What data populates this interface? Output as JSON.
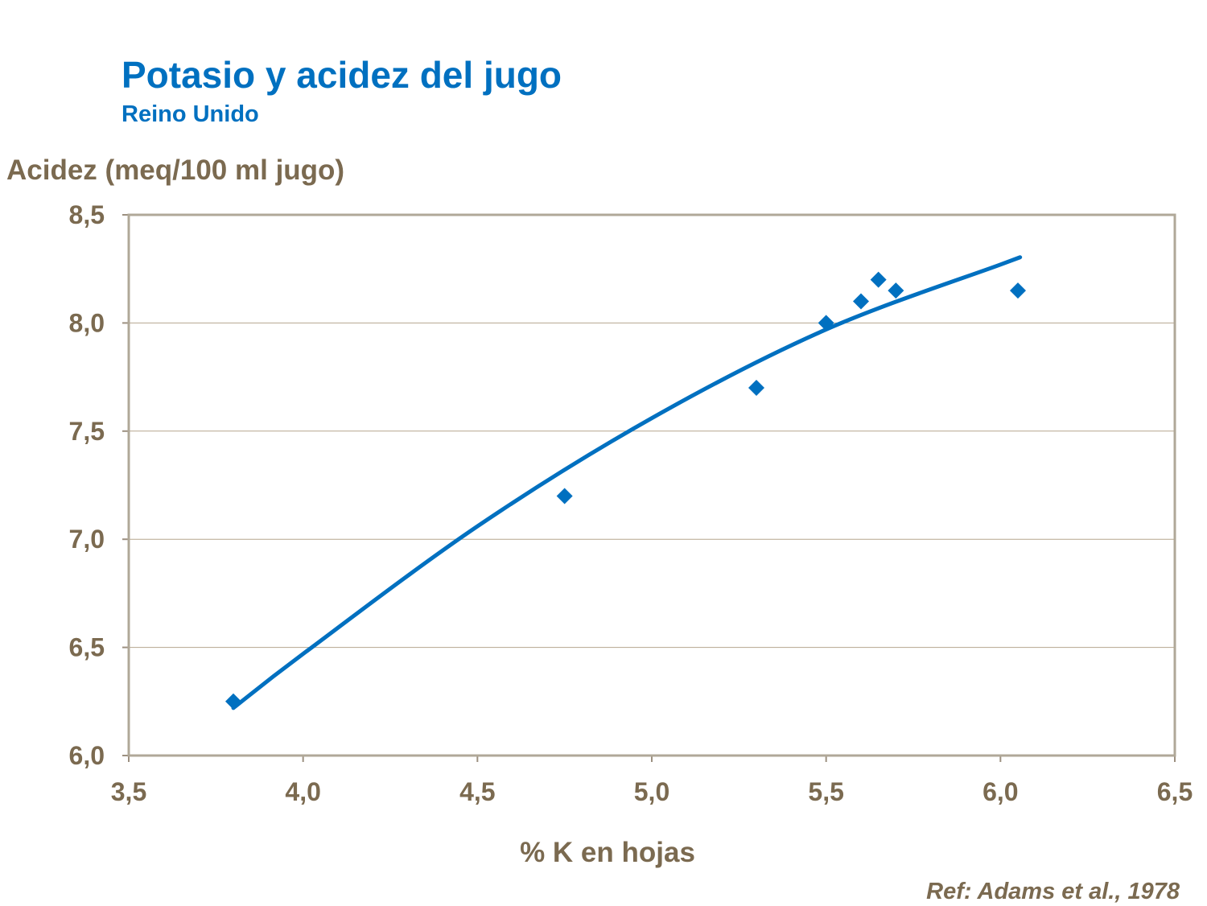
{
  "chart_data": {
    "type": "scatter",
    "title": "Potasio y acidez del jugo",
    "subtitle": "Reino Unido",
    "xlabel": "% K en hojas",
    "ylabel": "Acidez (meq/100 ml jugo)",
    "xlim": [
      3.5,
      6.5
    ],
    "ylim": [
      6.0,
      8.5
    ],
    "x_ticks": [
      "3,5",
      "4,0",
      "4,5",
      "5,0",
      "5,5",
      "6,0",
      "6,5"
    ],
    "y_ticks": [
      "6,0",
      "6,5",
      "7,0",
      "7,5",
      "8,0",
      "8,5"
    ],
    "grid": "horizontal",
    "legend": "none",
    "series": [
      {
        "marker": "diamond",
        "color": "#0070C0",
        "points": [
          {
            "x": 3.8,
            "y": 6.25
          },
          {
            "x": 4.75,
            "y": 7.2
          },
          {
            "x": 5.3,
            "y": 7.7
          },
          {
            "x": 5.5,
            "y": 8.0
          },
          {
            "x": 5.6,
            "y": 8.1
          },
          {
            "x": 5.65,
            "y": 8.2
          },
          {
            "x": 5.7,
            "y": 8.15
          },
          {
            "x": 6.05,
            "y": 8.15
          }
        ]
      }
    ],
    "trendline": {
      "type": "polynomial",
      "order": 2,
      "color": "#0070C0",
      "x_range": [
        3.8,
        6.05
      ],
      "samples": [
        {
          "x": 3.8,
          "y": 6.22
        },
        {
          "x": 4.0,
          "y": 6.47
        },
        {
          "x": 4.5,
          "y": 7.06
        },
        {
          "x": 5.0,
          "y": 7.56
        },
        {
          "x": 5.5,
          "y": 7.97
        },
        {
          "x": 6.0,
          "y": 8.27
        },
        {
          "x": 6.05,
          "y": 8.3
        }
      ]
    },
    "reference": "Ref: Adams et al., 1978"
  }
}
